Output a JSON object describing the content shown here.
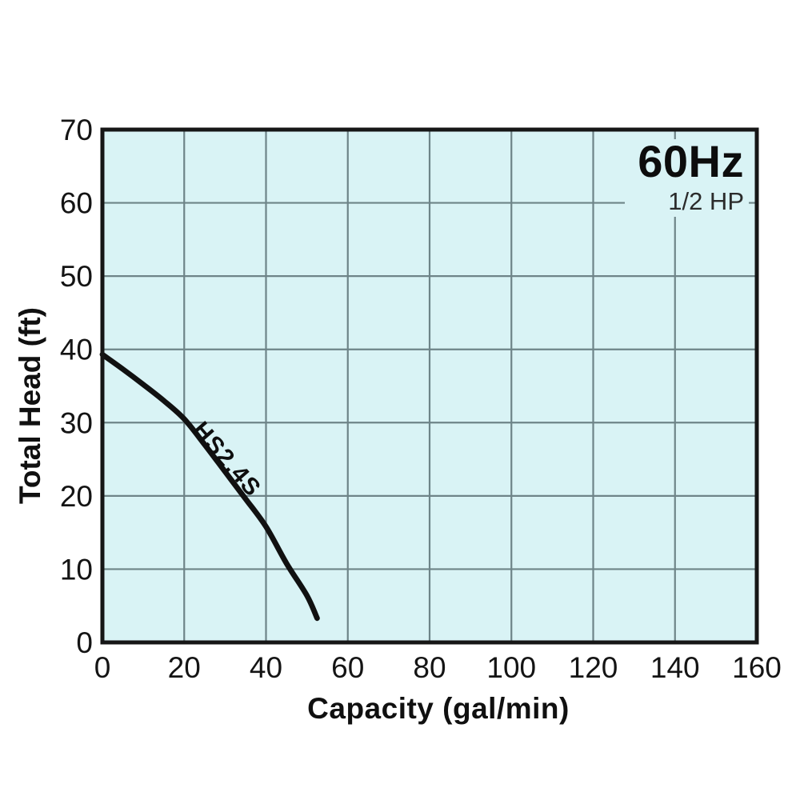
{
  "annotation": {
    "frequency": "60Hz",
    "power": "1/2 HP"
  },
  "chart_data": {
    "type": "line",
    "xlabel": "Capacity (gal/min)",
    "ylabel": "Total Head (ft)",
    "xlim": [
      0,
      160
    ],
    "ylim": [
      0,
      70
    ],
    "x_ticks": [
      0,
      20,
      40,
      60,
      80,
      100,
      120,
      140,
      160
    ],
    "y_ticks": [
      0,
      10,
      20,
      30,
      40,
      50,
      60,
      70
    ],
    "grid": true,
    "legend_position": "on-curve",
    "series": [
      {
        "name": "HS2.4S",
        "points": [
          [
            0,
            39.3
          ],
          [
            5,
            37.3
          ],
          [
            10,
            35.2
          ],
          [
            15,
            33.0
          ],
          [
            20,
            30.5
          ],
          [
            25,
            27.0
          ],
          [
            30,
            23.3
          ],
          [
            35,
            19.6
          ],
          [
            40,
            15.8
          ],
          [
            45,
            10.8
          ],
          [
            50,
            6.4
          ],
          [
            52.5,
            3.3
          ]
        ]
      }
    ],
    "colors": {
      "plot_bg": "#d9f3f5",
      "grid": "#6e8488",
      "curve": "#111111",
      "border": "#161616",
      "tick_text": "#141414"
    }
  }
}
